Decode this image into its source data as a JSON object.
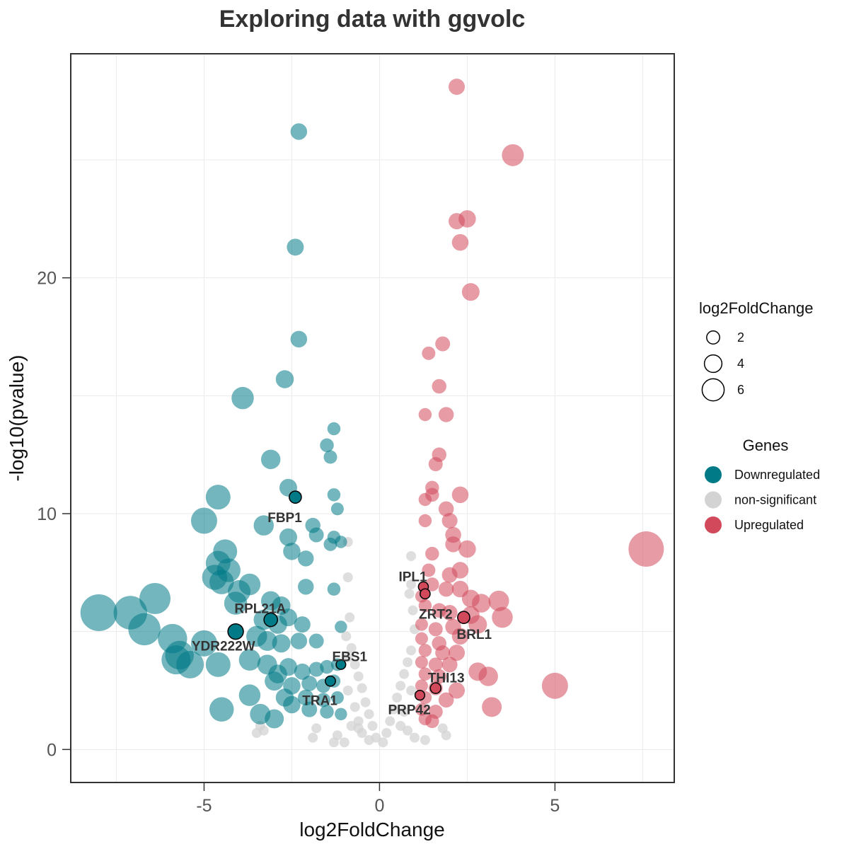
{
  "chart_data": {
    "type": "scatter",
    "title": "Exploring data with ggvolc",
    "xlabel": "log2FoldChange",
    "ylabel": "-log10(pvalue)",
    "xlim": [
      -8.8,
      8.4
    ],
    "ylim": [
      -1.4,
      29.5
    ],
    "xticks": [
      -5,
      0,
      5
    ],
    "yticks": [
      0,
      10,
      20
    ],
    "grid": true,
    "legend_position": "right",
    "size_legend": {
      "title": "log2FoldChange",
      "entries": [
        {
          "label": "2",
          "value": 2
        },
        {
          "label": "4",
          "value": 4
        },
        {
          "label": "6",
          "value": 6
        }
      ]
    },
    "color_legend": {
      "title": "Genes",
      "entries": [
        {
          "label": "Downregulated",
          "color": "#007A87"
        },
        {
          "label": "non-significant",
          "color": "#D3D3D3"
        },
        {
          "label": "Upregulated",
          "color": "#D1495B"
        }
      ]
    },
    "colors": {
      "Downregulated": "#007A87",
      "non-significant": "#D3D3D3",
      "Upregulated": "#D1495B"
    },
    "series": [
      {
        "name": "Downregulated",
        "points": [
          [
            -2.3,
            26.2
          ],
          [
            -2.4,
            21.3
          ],
          [
            -2.3,
            17.4
          ],
          [
            -2.7,
            15.7
          ],
          [
            -3.9,
            14.9
          ],
          [
            -1.3,
            13.6
          ],
          [
            -1.5,
            12.9
          ],
          [
            -1.4,
            12.4
          ],
          [
            -3.1,
            12.3
          ],
          [
            -2.6,
            11.1
          ],
          [
            -4.6,
            10.7
          ],
          [
            -1.3,
            10.8
          ],
          [
            -1.2,
            10.2
          ],
          [
            -5.0,
            9.7
          ],
          [
            -3.3,
            9.5
          ],
          [
            -1.9,
            9.5
          ],
          [
            -2.6,
            9.0
          ],
          [
            -1.8,
            9.1
          ],
          [
            -1.3,
            9.0
          ],
          [
            -4.4,
            8.4
          ],
          [
            -2.5,
            8.4
          ],
          [
            -1.4,
            8.7
          ],
          [
            -1.1,
            8.8
          ],
          [
            -4.6,
            7.9
          ],
          [
            -4.3,
            7.6
          ],
          [
            -2.1,
            8.1
          ],
          [
            -4.7,
            7.3
          ],
          [
            -4.5,
            7.1
          ],
          [
            -3.7,
            7.0
          ],
          [
            -4.0,
            6.7
          ],
          [
            -2.1,
            6.9
          ],
          [
            -1.3,
            6.8
          ],
          [
            -6.4,
            6.4
          ],
          [
            -4.1,
            6.2
          ],
          [
            -3.1,
            6.3
          ],
          [
            -2.8,
            6.1
          ],
          [
            -8.0,
            5.8
          ],
          [
            -7.1,
            5.8
          ],
          [
            -6.7,
            5.1
          ],
          [
            -3.3,
            5.5
          ],
          [
            -2.9,
            5.3
          ],
          [
            -2.6,
            5.6
          ],
          [
            -2.2,
            5.3
          ],
          [
            -5.9,
            4.7
          ],
          [
            -5.0,
            4.5
          ],
          [
            -3.5,
            4.8
          ],
          [
            -3.2,
            4.6
          ],
          [
            -2.8,
            4.5
          ],
          [
            -2.3,
            4.6
          ],
          [
            -1.8,
            4.6
          ],
          [
            -1.1,
            5.2
          ],
          [
            -5.7,
            4.0
          ],
          [
            -5.8,
            3.8
          ],
          [
            -5.4,
            3.6
          ],
          [
            -4.6,
            3.6
          ],
          [
            -3.7,
            3.8
          ],
          [
            -3.2,
            3.6
          ],
          [
            -2.9,
            3.2
          ],
          [
            -2.6,
            3.5
          ],
          [
            -2.2,
            3.3
          ],
          [
            -1.8,
            3.4
          ],
          [
            -1.5,
            3.5
          ],
          [
            -1.2,
            3.6
          ],
          [
            -3.0,
            2.9
          ],
          [
            -2.5,
            2.7
          ],
          [
            -2.0,
            2.8
          ],
          [
            -1.6,
            2.7
          ],
          [
            -1.3,
            2.9
          ],
          [
            -3.7,
            2.3
          ],
          [
            -2.7,
            2.2
          ],
          [
            -2.1,
            2.2
          ],
          [
            -1.6,
            2.1
          ],
          [
            -1.2,
            2.2
          ],
          [
            -4.5,
            1.7
          ],
          [
            -3.4,
            1.5
          ],
          [
            -3.0,
            1.3
          ],
          [
            -2.5,
            1.9
          ],
          [
            -2.0,
            1.7
          ],
          [
            -1.5,
            1.6
          ],
          [
            -1.1,
            1.5
          ]
        ]
      },
      {
        "name": "Upregulated",
        "points": [
          [
            2.2,
            28.1
          ],
          [
            3.8,
            25.2
          ],
          [
            2.2,
            22.4
          ],
          [
            2.5,
            22.5
          ],
          [
            2.3,
            21.5
          ],
          [
            2.6,
            19.4
          ],
          [
            1.8,
            17.2
          ],
          [
            1.4,
            16.8
          ],
          [
            1.7,
            15.4
          ],
          [
            1.3,
            14.2
          ],
          [
            1.9,
            14.2
          ],
          [
            1.7,
            12.5
          ],
          [
            1.6,
            12.1
          ],
          [
            1.5,
            11.1
          ],
          [
            1.5,
            10.8
          ],
          [
            1.3,
            10.6
          ],
          [
            2.3,
            10.8
          ],
          [
            1.3,
            9.7
          ],
          [
            1.9,
            10.2
          ],
          [
            2.0,
            9.7
          ],
          [
            2.1,
            9.1
          ],
          [
            2.1,
            8.7
          ],
          [
            1.5,
            8.3
          ],
          [
            2.5,
            8.5
          ],
          [
            7.6,
            8.5
          ],
          [
            1.4,
            7.6
          ],
          [
            2.0,
            7.4
          ],
          [
            2.3,
            7.6
          ],
          [
            1.5,
            7.0
          ],
          [
            1.9,
            6.8
          ],
          [
            2.3,
            6.8
          ],
          [
            1.2,
            6.5
          ],
          [
            2.6,
            6.4
          ],
          [
            3.4,
            6.3
          ],
          [
            2.9,
            6.2
          ],
          [
            1.3,
            6.1
          ],
          [
            1.7,
            5.9
          ],
          [
            2.0,
            5.8
          ],
          [
            2.6,
            5.7
          ],
          [
            3.5,
            5.6
          ],
          [
            1.2,
            5.3
          ],
          [
            1.6,
            5.1
          ],
          [
            2.1,
            5.2
          ],
          [
            2.8,
            5.3
          ],
          [
            1.2,
            4.7
          ],
          [
            1.7,
            4.5
          ],
          [
            2.3,
            4.8
          ],
          [
            1.3,
            4.2
          ],
          [
            1.8,
            4.1
          ],
          [
            2.2,
            4.1
          ],
          [
            1.2,
            3.7
          ],
          [
            1.6,
            3.6
          ],
          [
            2.0,
            3.6
          ],
          [
            1.3,
            3.2
          ],
          [
            1.7,
            3.1
          ],
          [
            2.8,
            3.3
          ],
          [
            3.1,
            3.1
          ],
          [
            1.2,
            2.7
          ],
          [
            1.6,
            2.6
          ],
          [
            2.2,
            2.5
          ],
          [
            5.0,
            2.7
          ],
          [
            1.3,
            2.2
          ],
          [
            1.9,
            2.1
          ],
          [
            1.2,
            1.7
          ],
          [
            1.6,
            1.6
          ],
          [
            3.2,
            1.8
          ],
          [
            1.3,
            1.3
          ],
          [
            1.5,
            1.2
          ]
        ]
      },
      {
        "name": "non-significant",
        "points": [
          [
            -0.9,
            3.9
          ],
          [
            -0.8,
            4.3
          ],
          [
            -0.7,
            3.6
          ],
          [
            -0.6,
            3.1
          ],
          [
            -0.5,
            2.6
          ],
          [
            -0.9,
            2.5
          ],
          [
            -0.4,
            2.0
          ],
          [
            -0.3,
            1.5
          ],
          [
            -0.2,
            1.0
          ],
          [
            -0.1,
            0.5
          ],
          [
            -0.7,
            1.8
          ],
          [
            -0.6,
            1.2
          ],
          [
            -0.8,
            1.0
          ],
          [
            -0.5,
            0.7
          ],
          [
            -0.3,
            0.4
          ],
          [
            -1.2,
            0.6
          ],
          [
            -1.0,
            0.3
          ],
          [
            -0.9,
            7.3
          ],
          [
            -0.9,
            8.8
          ],
          [
            -3.4,
            1.0
          ],
          [
            -3.3,
            0.8
          ],
          [
            -3.5,
            0.7
          ],
          [
            -1.8,
            0.9
          ],
          [
            -1.9,
            0.5
          ],
          [
            -1.3,
            0.3
          ],
          [
            0.9,
            4.2
          ],
          [
            0.8,
            3.7
          ],
          [
            0.7,
            3.2
          ],
          [
            0.6,
            2.7
          ],
          [
            0.5,
            2.2
          ],
          [
            0.9,
            2.5
          ],
          [
            0.4,
            1.7
          ],
          [
            0.3,
            1.2
          ],
          [
            0.2,
            0.7
          ],
          [
            0.1,
            0.3
          ],
          [
            0.7,
            1.6
          ],
          [
            0.6,
            1.0
          ],
          [
            0.8,
            0.8
          ],
          [
            1.0,
            0.5
          ],
          [
            0.9,
            8.2
          ],
          [
            0.9,
            7.0
          ],
          [
            1.0,
            5.1
          ],
          [
            1.8,
            0.9
          ],
          [
            1.3,
            0.4
          ],
          [
            1.9,
            0.6
          ],
          [
            -0.95,
            4.8
          ],
          [
            -0.85,
            5.6
          ],
          [
            0.95,
            5.9
          ],
          [
            0.85,
            6.6
          ],
          [
            -0.6,
            0.9
          ]
        ]
      }
    ],
    "highlighted": [
      {
        "gene": "FBP1",
        "x": -2.4,
        "y": 10.7,
        "group": "Downregulated",
        "label_dx": -0.3,
        "label_dy": -0.85
      },
      {
        "gene": "RPL21A",
        "x": -3.1,
        "y": 5.5,
        "group": "Downregulated",
        "label_dx": -0.3,
        "label_dy": 0.5
      },
      {
        "gene": "YDR222W",
        "x": -4.1,
        "y": 5.0,
        "group": "Downregulated",
        "label_dx": -0.35,
        "label_dy": -0.6
      },
      {
        "gene": "EBS1",
        "x": -1.1,
        "y": 3.6,
        "group": "Downregulated",
        "label_dx": 0.25,
        "label_dy": 0.35
      },
      {
        "gene": "TRA1",
        "x": -1.4,
        "y": 2.9,
        "group": "Downregulated",
        "label_dx": -0.3,
        "label_dy": -0.8
      },
      {
        "gene": "IPL1",
        "x": 1.25,
        "y": 6.9,
        "group": "Upregulated",
        "label_dx": -0.3,
        "label_dy": 0.45
      },
      {
        "gene": "ZRT2",
        "x": 1.3,
        "y": 6.6,
        "group": "Upregulated",
        "label_dx": 0.3,
        "label_dy": -0.85
      },
      {
        "gene": "BRL1",
        "x": 2.4,
        "y": 5.6,
        "group": "Upregulated",
        "label_dx": 0.3,
        "label_dy": -0.7
      },
      {
        "gene": "THI13",
        "x": 1.6,
        "y": 2.6,
        "group": "Upregulated",
        "label_dx": 0.3,
        "label_dy": 0.45
      },
      {
        "gene": "PRP42",
        "x": 1.15,
        "y": 2.3,
        "group": "Upregulated",
        "label_dx": -0.3,
        "label_dy": -0.6
      }
    ]
  }
}
